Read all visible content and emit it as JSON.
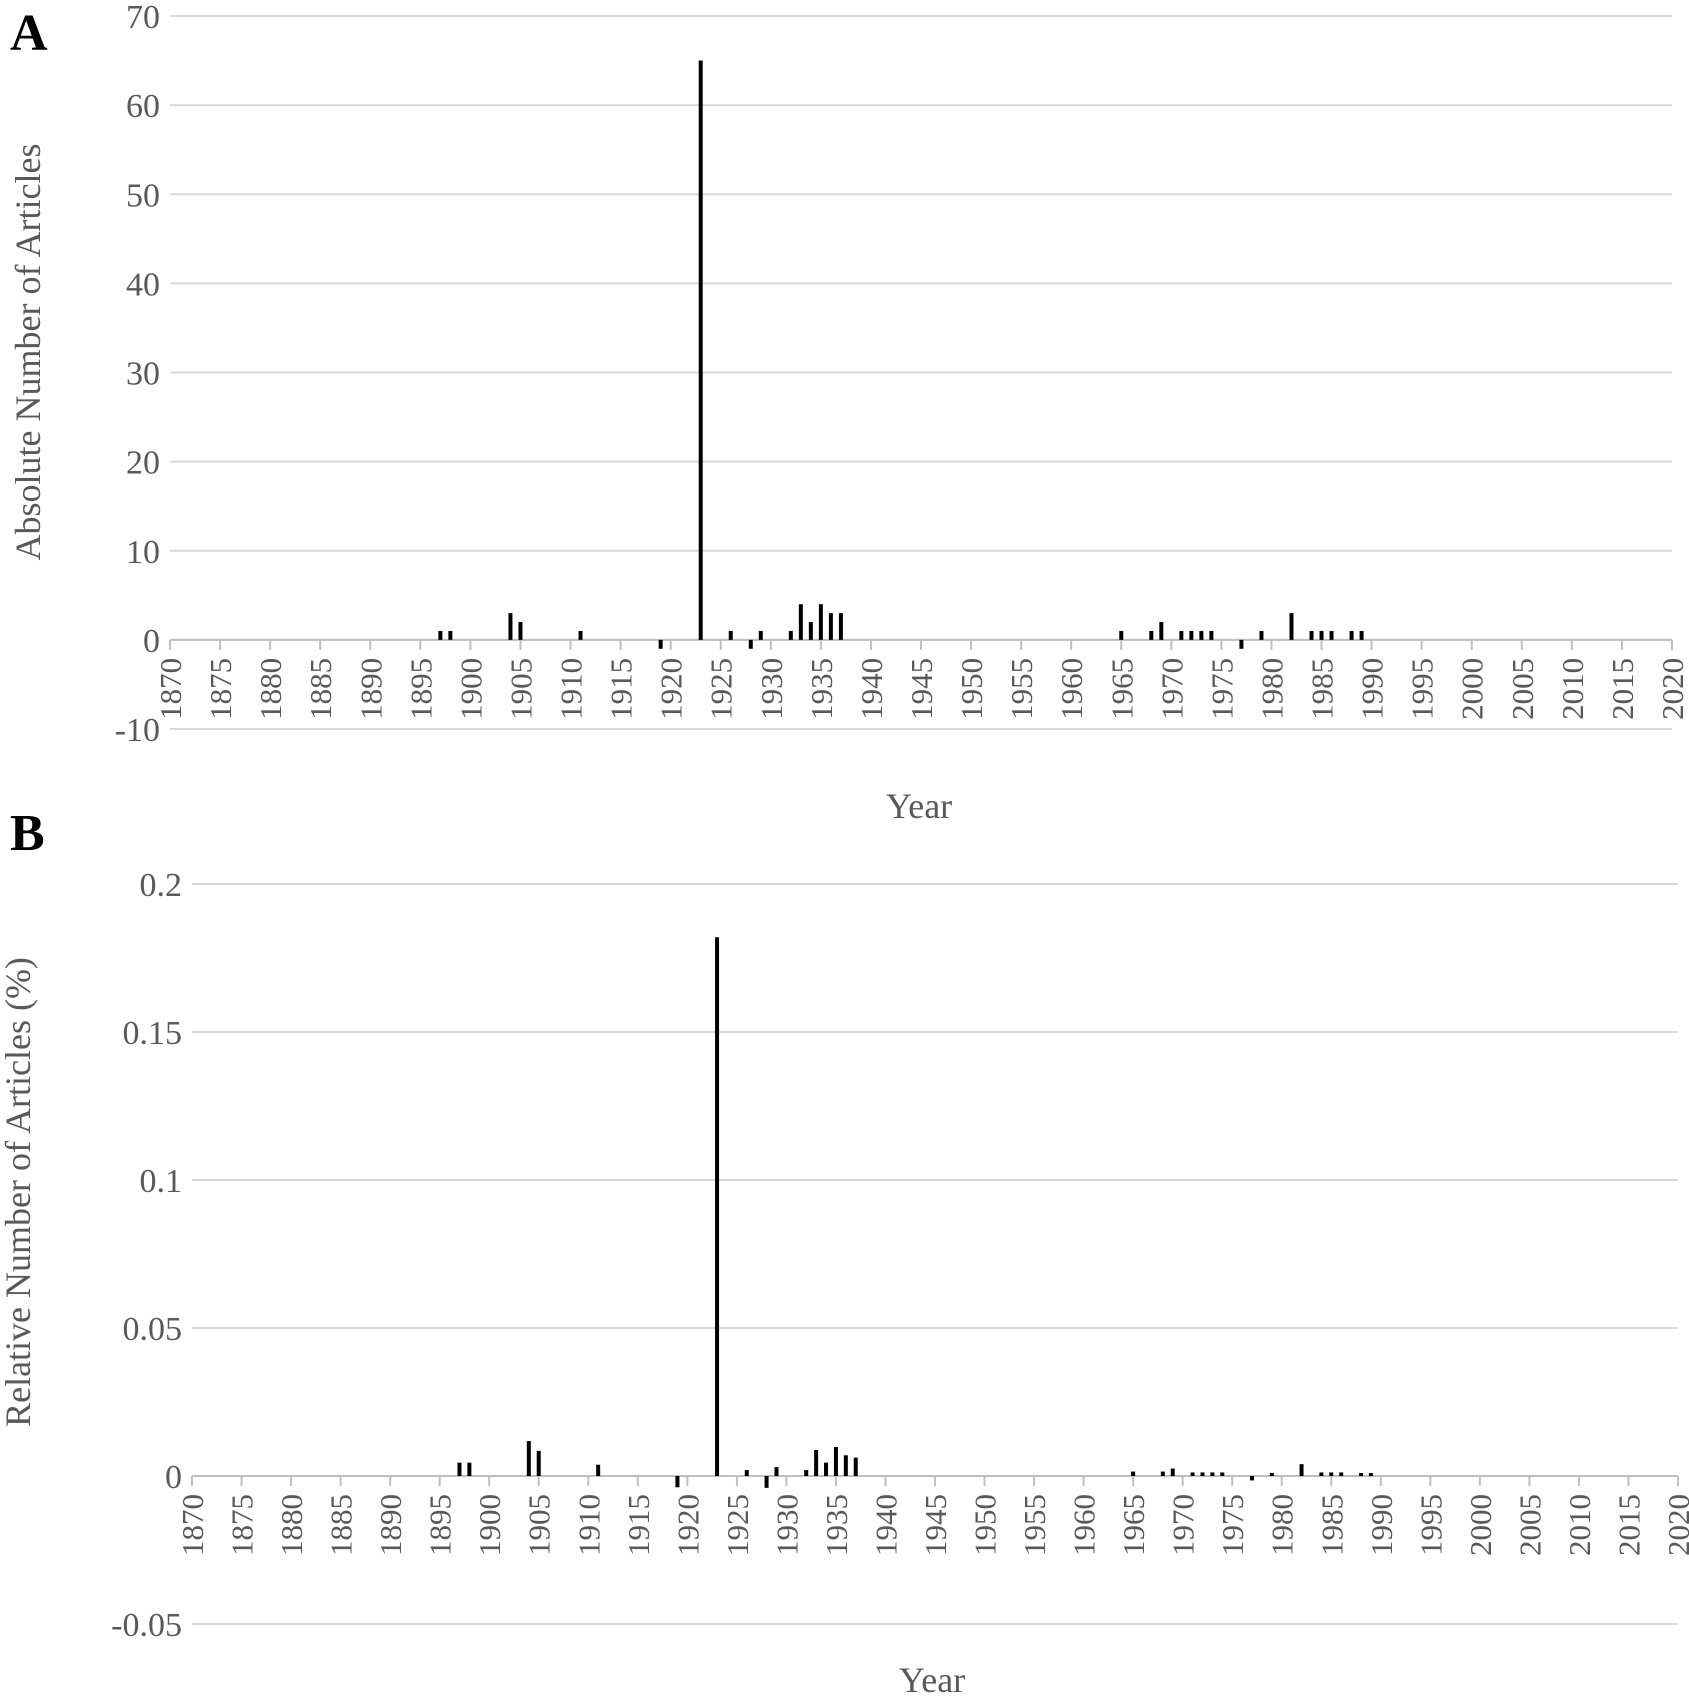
{
  "chart_data": [
    {
      "type": "bar",
      "panel_label": "A",
      "title": "",
      "xlabel": "Year",
      "ylabel": "Absolute Number of Articles",
      "ylim": [
        -10,
        70
      ],
      "yticks": [
        -10,
        0,
        10,
        20,
        30,
        40,
        50,
        60,
        70
      ],
      "ytick_labels": [
        "-10",
        "0",
        "10",
        "20",
        "30",
        "40",
        "50",
        "60",
        "70"
      ],
      "xlim": [
        1870,
        2020
      ],
      "xticks": [
        "1870",
        "1875",
        "1880",
        "1885",
        "1890",
        "1895",
        "1900",
        "1905",
        "1910",
        "1915",
        "1920",
        "1925",
        "1930",
        "1935",
        "1940",
        "1945",
        "1950",
        "1955",
        "1960",
        "1965",
        "1970",
        "1975",
        "1980",
        "1985",
        "1990",
        "1995",
        "2000",
        "2005",
        "2010",
        "2015",
        "2020"
      ],
      "grid": true,
      "bar_color": "#000000",
      "grid_color": "#d9d9d9",
      "series": [
        {
          "years": [
            1897,
            1898,
            1904,
            1905,
            1911,
            1919,
            1923,
            1926,
            1928,
            1929,
            1932,
            1933,
            1934,
            1935,
            1936,
            1937,
            1965,
            1968,
            1969,
            1971,
            1972,
            1973,
            1974,
            1977,
            1979,
            1982,
            1984,
            1985,
            1986,
            1988,
            1989
          ],
          "values": [
            1,
            1,
            3,
            2,
            1,
            -1,
            65,
            1,
            -1,
            1,
            1,
            4,
            2,
            4,
            3,
            3,
            1,
            1,
            2,
            1,
            1,
            1,
            1,
            -1,
            1,
            3,
            1,
            1,
            1,
            1,
            1
          ]
        }
      ]
    },
    {
      "type": "bar",
      "panel_label": "B",
      "title": "",
      "xlabel": "Year",
      "ylabel": "Relative Number of Articles (%)",
      "ylim": [
        -0.05,
        0.2
      ],
      "yticks": [
        -0.05,
        0,
        0.05,
        0.1,
        0.15,
        0.2
      ],
      "ytick_labels": [
        "-0.05",
        "0",
        "0.05",
        "0.1",
        "0.15",
        "0.2"
      ],
      "xlim": [
        1870,
        2020
      ],
      "xticks": [
        "1870",
        "1875",
        "1880",
        "1885",
        "1890",
        "1895",
        "1900",
        "1905",
        "1910",
        "1915",
        "1920",
        "1925",
        "1930",
        "1935",
        "1940",
        "1945",
        "1950",
        "1955",
        "1960",
        "1965",
        "1970",
        "1975",
        "1980",
        "1985",
        "1990",
        "1995",
        "2000",
        "2005",
        "2010",
        "2015",
        "2020"
      ],
      "grid": true,
      "bar_color": "#000000",
      "grid_color": "#d9d9d9",
      "series": [
        {
          "years": [
            1897,
            1898,
            1904,
            1905,
            1911,
            1919,
            1923,
            1926,
            1928,
            1929,
            1932,
            1933,
            1934,
            1935,
            1936,
            1937,
            1965,
            1968,
            1969,
            1971,
            1972,
            1973,
            1974,
            1977,
            1979,
            1982,
            1984,
            1985,
            1986,
            1988,
            1989
          ],
          "values": [
            0.0045,
            0.0045,
            0.0118,
            0.0085,
            0.0038,
            -0.0038,
            0.182,
            0.002,
            -0.004,
            0.003,
            0.002,
            0.0088,
            0.0045,
            0.0098,
            0.007,
            0.0062,
            0.0015,
            0.0015,
            0.0025,
            0.0012,
            0.0012,
            0.0012,
            0.0012,
            -0.0015,
            0.001,
            0.004,
            0.0012,
            0.0012,
            0.0012,
            0.001,
            0.001
          ]
        }
      ]
    }
  ]
}
